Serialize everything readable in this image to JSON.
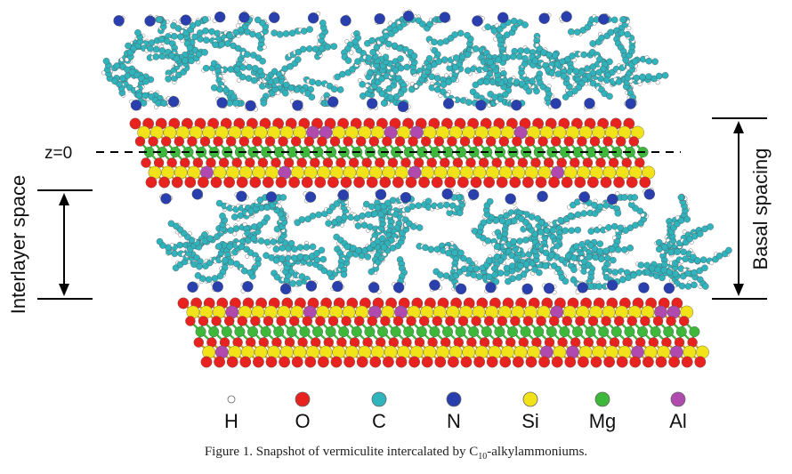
{
  "figure": {
    "z_label": "z=0",
    "interlayer_label": "Interlayer space",
    "basal_label": "Basal spacing",
    "legend": [
      {
        "symbol": "H",
        "color": "#ffffff"
      },
      {
        "symbol": "O",
        "color": "#e8231f"
      },
      {
        "symbol": "C",
        "color": "#2fb3bd"
      },
      {
        "symbol": "N",
        "color": "#2a3fae"
      },
      {
        "symbol": "Si",
        "color": "#f2e21a"
      },
      {
        "symbol": "Mg",
        "color": "#3db83a"
      },
      {
        "symbol": "Al",
        "color": "#b04aae"
      }
    ]
  },
  "caption": {
    "prefix": "Figure 1. Snapshot of vermiculite intercalated by C",
    "subscript": "10",
    "suffix": "-alkylammoniums."
  }
}
